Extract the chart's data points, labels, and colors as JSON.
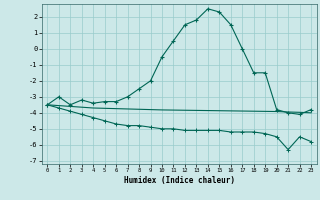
{
  "xlabel": "Humidex (Indice chaleur)",
  "background_color": "#cce8e8",
  "grid_color": "#99cccc",
  "line_color": "#006655",
  "xlim": [
    -0.5,
    23.5
  ],
  "ylim": [
    -7.2,
    2.8
  ],
  "yticks": [
    -7,
    -6,
    -5,
    -4,
    -3,
    -2,
    -1,
    0,
    1,
    2
  ],
  "xticks": [
    0,
    1,
    2,
    3,
    4,
    5,
    6,
    7,
    8,
    9,
    10,
    11,
    12,
    13,
    14,
    15,
    16,
    17,
    18,
    19,
    20,
    21,
    22,
    23
  ],
  "series1": {
    "x": [
      0,
      1,
      2,
      3,
      4,
      5,
      6,
      7,
      8,
      9,
      10,
      11,
      12,
      13,
      14,
      15,
      16,
      17,
      18,
      19,
      20,
      21,
      22,
      23
    ],
    "y": [
      -3.5,
      -3.0,
      -3.5,
      -3.2,
      -3.4,
      -3.3,
      -3.3,
      -3.0,
      -2.5,
      -2.0,
      -0.5,
      0.5,
      1.5,
      1.8,
      2.5,
      2.3,
      1.5,
      0.0,
      -1.5,
      -1.5,
      -3.8,
      -4.0,
      -4.1,
      -3.8
    ]
  },
  "series2": {
    "x": [
      0,
      1,
      2,
      3,
      4,
      5,
      6,
      7,
      8,
      9,
      10,
      11,
      12,
      13,
      14,
      15,
      16,
      17,
      18,
      19,
      20,
      21,
      22,
      23
    ],
    "y": [
      -3.5,
      -3.55,
      -3.6,
      -3.65,
      -3.7,
      -3.72,
      -3.74,
      -3.76,
      -3.78,
      -3.8,
      -3.82,
      -3.83,
      -3.84,
      -3.85,
      -3.86,
      -3.87,
      -3.88,
      -3.89,
      -3.9,
      -3.91,
      -3.92,
      -3.95,
      -3.97,
      -4.0
    ]
  },
  "series3": {
    "x": [
      0,
      1,
      2,
      3,
      4,
      5,
      6,
      7,
      8,
      9,
      10,
      11,
      12,
      13,
      14,
      15,
      16,
      17,
      18,
      19,
      20,
      21,
      22,
      23
    ],
    "y": [
      -3.5,
      -3.7,
      -3.9,
      -4.1,
      -4.3,
      -4.5,
      -4.7,
      -4.8,
      -4.8,
      -4.9,
      -5.0,
      -5.0,
      -5.1,
      -5.1,
      -5.1,
      -5.1,
      -5.2,
      -5.2,
      -5.2,
      -5.3,
      -5.5,
      -6.3,
      -5.5,
      -5.8
    ]
  }
}
